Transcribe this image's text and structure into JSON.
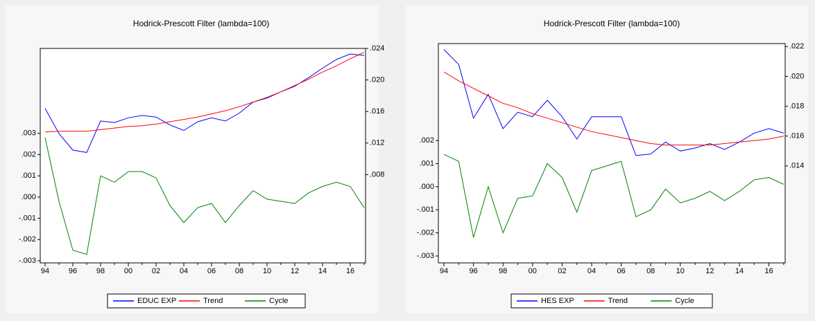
{
  "chart_data": [
    {
      "type": "line",
      "title": "Hodrick-Prescott Filter (lambda=100)",
      "categories": [
        "94",
        null,
        "96",
        null,
        "98",
        null,
        "00",
        null,
        "02",
        null,
        "04",
        null,
        "06",
        null,
        "08",
        null,
        "10",
        null,
        "12",
        null,
        "14",
        null,
        "16",
        null
      ],
      "ylim": [
        -0.0031,
        0.007
      ],
      "yticks": [
        {
          "value": -0.003,
          "label": "-.003"
        },
        {
          "value": -0.002,
          "label": "-.002"
        },
        {
          "value": -0.001,
          "label": "-.001"
        },
        {
          "value": 0,
          "label": ".000"
        },
        {
          "value": 0.001,
          "label": ".001"
        },
        {
          "value": 0.002,
          "label": ".002"
        },
        {
          "value": 0.003,
          "label": ".003"
        }
      ],
      "y2lim": [
        -0.0032,
        0.024
      ],
      "y2ticks": [
        {
          "value": 0.008,
          "label": ".008"
        },
        {
          "value": 0.012,
          "label": ".012"
        },
        {
          "value": 0.016,
          "label": ".016"
        },
        {
          "value": 0.02,
          "label": ".020"
        },
        {
          "value": 0.024,
          "label": ".024"
        }
      ],
      "series": [
        {
          "name": "EDUC EXP",
          "color": "#0000ff",
          "axis": "y2",
          "values": [
            0.0164,
            0.0132,
            0.0111,
            0.0108,
            0.0148,
            0.0146,
            0.0152,
            0.0155,
            0.0153,
            0.0143,
            0.0136,
            0.0147,
            0.0152,
            0.0148,
            0.0158,
            0.0172,
            0.0177,
            0.0185,
            0.0192,
            0.0203,
            0.0215,
            0.0226,
            0.0233,
            0.0231
          ]
        },
        {
          "name": "Trend",
          "color": "#ff0000",
          "axis": "y2",
          "values": [
            0.0134,
            0.0135,
            0.0135,
            0.0135,
            0.0137,
            0.0139,
            0.0141,
            0.0142,
            0.0144,
            0.0147,
            0.015,
            0.0153,
            0.0157,
            0.0161,
            0.0166,
            0.0172,
            0.0178,
            0.0185,
            0.0193,
            0.0201,
            0.021,
            0.0218,
            0.0227,
            0.0235
          ]
        },
        {
          "name": "Cycle",
          "color": "#008000",
          "values": [
            0.0028,
            -0.0002,
            -0.0025,
            -0.0027,
            0.001,
            0.0007,
            0.0012,
            0.0012,
            0.0009,
            -0.0004,
            -0.0012,
            -0.0005,
            -0.0003,
            -0.0012,
            -0.0004,
            0.0003,
            -0.0001,
            -0.0002,
            -0.0003,
            0.0002,
            0.0005,
            0.0007,
            0.0005,
            -0.0005
          ]
        }
      ]
    },
    {
      "type": "line",
      "title": "Hodrick-Prescott Filter (lambda=100)",
      "categories": [
        "94",
        null,
        "96",
        null,
        "98",
        null,
        "00",
        null,
        "02",
        null,
        "04",
        null,
        "06",
        null,
        "08",
        null,
        "10",
        null,
        "12",
        null,
        "14",
        null,
        "16",
        null
      ],
      "ylim": [
        -0.0033,
        0.0062
      ],
      "yticks": [
        {
          "value": -0.003,
          "label": "-.003"
        },
        {
          "value": -0.002,
          "label": "-.002"
        },
        {
          "value": -0.001,
          "label": "-.001"
        },
        {
          "value": 0,
          "label": ".000"
        },
        {
          "value": 0.001,
          "label": ".001"
        },
        {
          "value": 0.002,
          "label": ".002"
        }
      ],
      "y2lim": [
        0.0075,
        0.0222
      ],
      "y2ticks": [
        {
          "value": 0.014,
          "label": ".014"
        },
        {
          "value": 0.016,
          "label": ".016"
        },
        {
          "value": 0.018,
          "label": ".018"
        },
        {
          "value": 0.02,
          "label": ".020"
        },
        {
          "value": 0.022,
          "label": ".022"
        }
      ],
      "series": [
        {
          "name": "HES EXP",
          "color": "#0000ff",
          "axis": "y2",
          "values": [
            0.0218,
            0.0208,
            0.0172,
            0.0188,
            0.0165,
            0.0176,
            0.0173,
            0.0184,
            0.0173,
            0.0158,
            0.0173,
            0.0173,
            0.0173,
            0.0147,
            0.0148,
            0.0156,
            0.015,
            0.0152,
            0.0155,
            0.0151,
            0.0156,
            0.0162,
            0.0165,
            0.0162
          ]
        },
        {
          "name": "Trend",
          "color": "#ff0000",
          "axis": "y2",
          "values": [
            0.0203,
            0.0197,
            0.0192,
            0.0187,
            0.0182,
            0.0179,
            0.0175,
            0.0172,
            0.0169,
            0.0166,
            0.0163,
            0.0161,
            0.0159,
            0.0157,
            0.0155,
            0.0154,
            0.0154,
            0.0154,
            0.0154,
            0.0155,
            0.0156,
            0.0157,
            0.0158,
            0.016
          ]
        },
        {
          "name": "Cycle",
          "color": "#008000",
          "values": [
            0.0014,
            0.0011,
            -0.0022,
            0,
            -0.002,
            -0.0005,
            -0.0004,
            0.001,
            0.0004,
            -0.0011,
            0.0007,
            0.0009,
            0.0011,
            -0.0013,
            -0.001,
            -0.0001,
            -0.0007,
            -0.0005,
            -0.0002,
            -0.0006,
            -0.0002,
            0.0003,
            0.0004,
            0.0001
          ]
        }
      ]
    }
  ]
}
